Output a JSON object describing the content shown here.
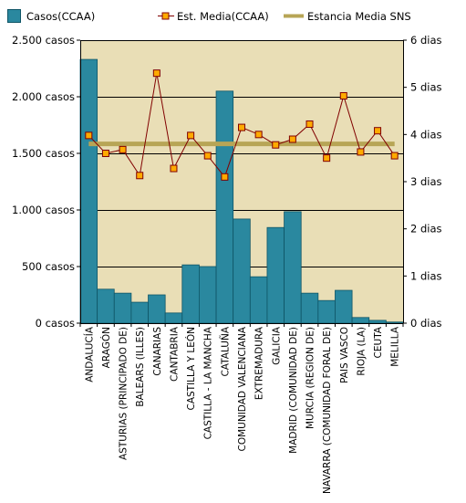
{
  "legend": {
    "cases_label": "Casos(CCAA)",
    "stay_label": "Est. Media(CCAA)",
    "sns_label": "Estancia Media SNS"
  },
  "colors": {
    "bar": "#2a889f",
    "bar_stroke": "#0f5566",
    "plot_bg": "#e9deb6",
    "line": "#800000",
    "marker_fill": "#ffaa00",
    "sns_line": "#b7a556",
    "grid": "#000000"
  },
  "chart_data": {
    "type": "bar",
    "categories": [
      "ANDALUCÍA",
      "ARAGÓN",
      "ASTURIAS (PRINCIPADO DE)",
      "BALEARS (ILLES)",
      "CANARIAS",
      "CANTABRIA",
      "CASTILLA Y LEÓN",
      "CASTILLA - LA MANCHA",
      "CATALUÑA",
      "COMUNIDAD VALENCIANA",
      "EXTREMADURA",
      "GALICIA",
      "MADRID (COMUNIDAD DE)",
      "MURCIA (REGION DE)",
      "NAVARRA (COMUNIDAD FORAL DE)",
      "PAIS VASCO",
      "RIOJA (LA)",
      "CEUTA",
      "MELILLA"
    ],
    "series": [
      {
        "name": "Casos(CCAA)",
        "type": "bar",
        "axis": "left",
        "values": [
          2330,
          300,
          265,
          185,
          250,
          90,
          515,
          500,
          2050,
          920,
          410,
          845,
          985,
          265,
          200,
          290,
          50,
          25,
          10
        ]
      },
      {
        "name": "Est. Media(CCAA)",
        "type": "line",
        "axis": "right",
        "values": [
          3.98,
          3.6,
          3.68,
          3.13,
          5.3,
          3.28,
          3.98,
          3.55,
          3.1,
          4.15,
          4.0,
          3.78,
          3.9,
          4.22,
          3.5,
          4.82,
          3.63,
          4.08,
          3.55
        ]
      },
      {
        "name": "Estancia Media SNS",
        "type": "hline",
        "axis": "right",
        "value": 3.8
      }
    ],
    "yleft_ticks": [
      "0 casos",
      "500 casos",
      "1.000 casos",
      "1.500 casos",
      "2.000 casos",
      "2.500 casos"
    ],
    "yright_ticks": [
      "0 dias",
      "1 dias",
      "2 dias",
      "3 dias",
      "4 dias",
      "5 dias",
      "6 dias"
    ],
    "yleft_lim": [
      0,
      2500
    ],
    "yright_lim": [
      0,
      6
    ],
    "grid": true,
    "legend_position": "top"
  }
}
